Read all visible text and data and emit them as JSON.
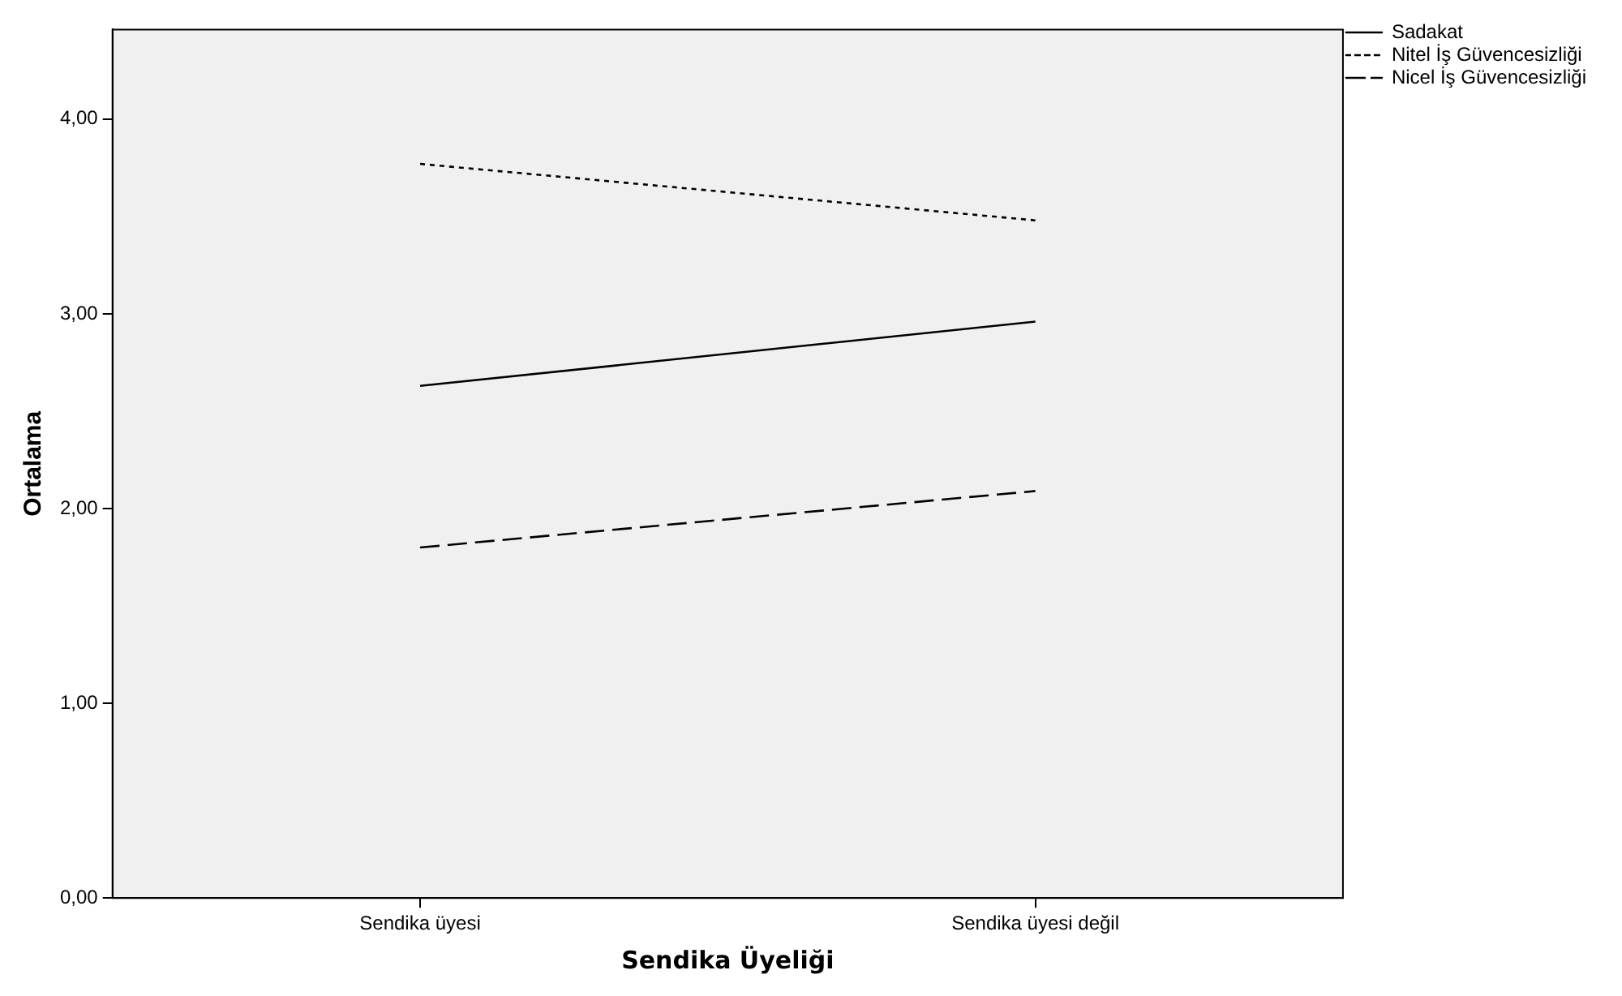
{
  "chart_data": {
    "type": "line",
    "xlabel": "Sendika Üyeliği",
    "ylabel": "Ortalama",
    "categories": [
      "Sendika üyesi",
      "Sendika üyesi değil"
    ],
    "series": [
      {
        "name": "Sadakat",
        "color": "#000000",
        "values": [
          2.63,
          2.96
        ],
        "line_style": "solid"
      },
      {
        "name": "Nitel İş Güvencesizliği",
        "color": "#000000",
        "values": [
          3.77,
          3.48
        ],
        "line_style": "dotted"
      },
      {
        "name": "Nicel İş Güvencesizliği",
        "color": "#000000",
        "values": [
          1.8,
          2.09
        ],
        "line_style": "dashed"
      }
    ],
    "ylim": [
      0,
      4.46
    ],
    "yticks": [
      {
        "value": 0,
        "label": "0,00"
      },
      {
        "value": 1,
        "label": "1,00"
      },
      {
        "value": 2,
        "label": "2,00"
      },
      {
        "value": 3,
        "label": "3,00"
      },
      {
        "value": 4,
        "label": "4,00"
      }
    ],
    "grid": false,
    "legend": "top right",
    "marker": "none"
  }
}
